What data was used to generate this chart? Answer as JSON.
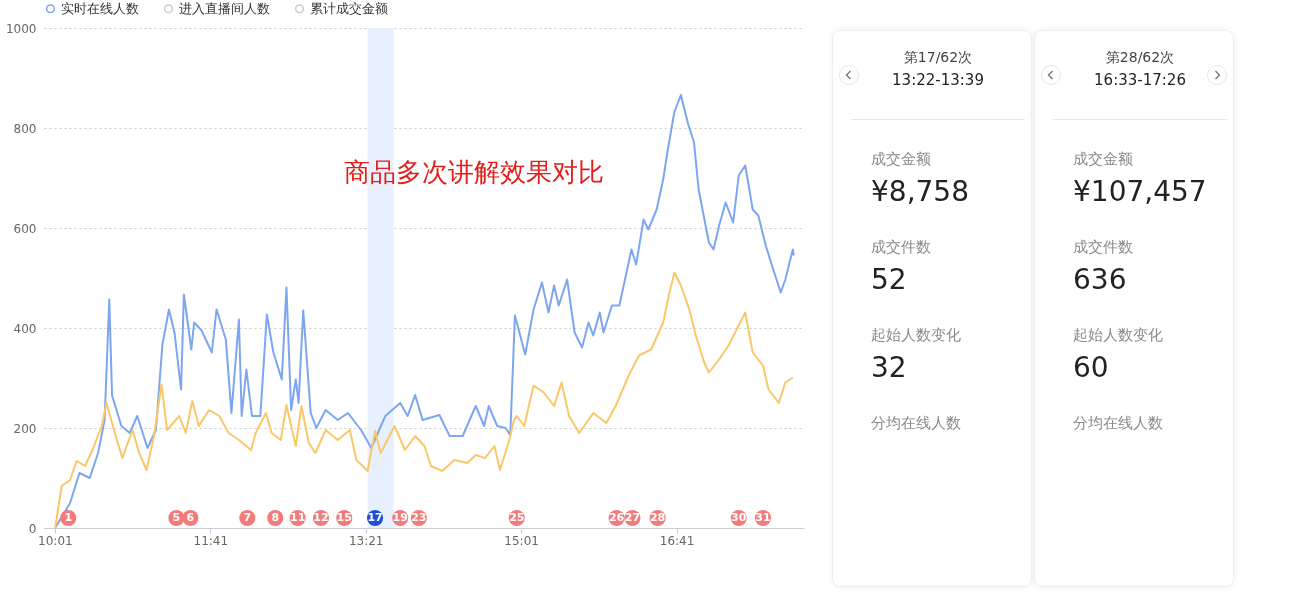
{
  "chart_data": [
    {
      "type": "line",
      "legend": "top",
      "grid": "y",
      "xlim": [
        9.9,
        18.05
      ],
      "ylim": [
        0,
        1000
      ],
      "xticks": [
        {
          "value": 10.0167,
          "label": "10:01"
        },
        {
          "value": 11.6833,
          "label": "11:41"
        },
        {
          "value": 13.35,
          "label": "13:21"
        },
        {
          "value": 15.0167,
          "label": "15:01"
        },
        {
          "value": 16.6833,
          "label": "16:41"
        }
      ],
      "yticks": [
        0,
        200,
        400,
        600,
        800,
        1000
      ],
      "bands": [
        {
          "axis": "x",
          "from": 13.37,
          "to": 13.65,
          "color": "#e8f0fe"
        }
      ],
      "series": [
        {
          "name": "实时在线人数",
          "color": "#7ea6f0",
          "x": [
            10.02,
            10.18,
            10.28,
            10.39,
            10.48,
            10.55,
            10.6,
            10.63,
            10.73,
            10.82,
            10.9,
            11.01,
            11.1,
            11.17,
            11.24,
            11.3,
            11.37,
            11.4,
            11.48,
            11.51,
            11.59,
            11.7,
            11.75,
            11.85,
            11.91,
            11.99,
            12.02,
            12.07,
            12.13,
            12.22,
            12.29,
            12.36,
            12.45,
            12.5,
            12.55,
            12.6,
            12.63,
            12.68,
            12.76,
            12.82,
            12.92,
            13.05,
            13.16,
            13.3,
            13.41,
            13.56,
            13.72,
            13.8,
            13.88,
            13.96,
            14.14,
            14.25,
            14.39,
            14.53,
            14.62,
            14.67,
            14.76,
            14.85,
            14.9,
            14.95,
            15.06,
            15.15,
            15.24,
            15.31,
            15.37,
            15.42,
            15.51,
            15.59,
            15.67,
            15.74,
            15.79,
            15.86,
            15.9,
            15.99,
            16.07,
            16.2,
            16.25,
            16.33,
            16.38,
            16.47,
            16.54,
            16.59,
            16.66,
            16.73,
            16.81,
            16.87,
            16.92,
            17.03,
            17.08,
            17.14,
            17.21,
            17.29,
            17.35,
            17.42,
            17.5,
            17.56,
            17.64,
            17.72,
            17.8,
            17.85,
            17.93,
            17.94
          ],
          "values": [
            0,
            50,
            110,
            100,
            150,
            216,
            457,
            265,
            204,
            190,
            224,
            160,
            196,
            367,
            437,
            390,
            277,
            467,
            357,
            411,
            395,
            351,
            437,
            377,
            230,
            417,
            224,
            317,
            224,
            224,
            427,
            351,
            297,
            481,
            236,
            297,
            250,
            435,
            230,
            200,
            236,
            216,
            230,
            196,
            160,
            224,
            250,
            224,
            266,
            216,
            226,
            184,
            184,
            244,
            204,
            244,
            204,
            200,
            186,
            425,
            347,
            437,
            491,
            431,
            485,
            445,
            497,
            391,
            361,
            411,
            385,
            431,
            391,
            445,
            445,
            557,
            527,
            617,
            597,
            637,
            697,
            757,
            832,
            866,
            806,
            772,
            677,
            571,
            557,
            605,
            651,
            611,
            705,
            725,
            637,
            625,
            565,
            517,
            471,
            497,
            557,
            545
          ]
        },
        {
          "color": "#f9c86a",
          "x": [
            10.02,
            10.09,
            10.18,
            10.25,
            10.34,
            10.42,
            10.52,
            10.57,
            10.66,
            10.74,
            10.85,
            10.92,
            11.0,
            11.08,
            11.16,
            11.22,
            11.35,
            11.42,
            11.49,
            11.56,
            11.67,
            11.78,
            11.88,
            11.99,
            12.12,
            12.17,
            12.28,
            12.34,
            12.44,
            12.5,
            12.6,
            12.66,
            12.74,
            12.81,
            12.92,
            13.05,
            13.18,
            13.25,
            13.37,
            13.45,
            13.51,
            13.66,
            13.77,
            13.88,
            13.98,
            14.05,
            14.17,
            14.3,
            14.44,
            14.53,
            14.63,
            14.73,
            14.79,
            14.89,
            14.94,
            14.97,
            15.05,
            15.15,
            15.26,
            15.37,
            15.45,
            15.53,
            15.64,
            15.79,
            15.93,
            16.03,
            16.17,
            16.28,
            16.41,
            16.54,
            16.6,
            16.66,
            16.73,
            16.82,
            16.89,
            16.98,
            17.03,
            17.14,
            17.24,
            17.35,
            17.42,
            17.5,
            17.61,
            17.67,
            17.78,
            17.85,
            17.93
          ],
          "values": [
            0,
            84,
            96,
            134,
            124,
            156,
            204,
            250,
            190,
            140,
            196,
            150,
            116,
            184,
            287,
            196,
            224,
            190,
            254,
            204,
            236,
            224,
            190,
            176,
            156,
            190,
            230,
            190,
            176,
            246,
            164,
            244,
            170,
            150,
            196,
            176,
            196,
            136,
            114,
            194,
            150,
            204,
            156,
            184,
            164,
            124,
            114,
            136,
            130,
            146,
            140,
            164,
            116,
            176,
            216,
            224,
            204,
            285,
            271,
            244,
            291,
            224,
            190,
            230,
            210,
            244,
            305,
            345,
            357,
            411,
            465,
            511,
            485,
            437,
            385,
            331,
            311,
            337,
            365,
            405,
            431,
            351,
            325,
            277,
            250,
            291,
            301
          ]
        },
        {
          "name": "进入直播间人数",
          "color": "#cccccc"
        },
        {
          "name": "累计成交金额",
          "color": "#cccccc"
        }
      ],
      "annotations": [
        "商品多次讲解效果对比",
        {
          "text": "1",
          "x": 10.16,
          "y": 20
        },
        {
          "text": "5",
          "x": 11.32,
          "y": 20
        },
        {
          "text": "6",
          "x": 11.47,
          "y": 20
        },
        {
          "text": "7",
          "x": 12.08,
          "y": 20
        },
        {
          "text": "8",
          "x": 12.38,
          "y": 20
        },
        {
          "text": "11",
          "x": 12.62,
          "y": 20
        },
        {
          "text": "12",
          "x": 12.87,
          "y": 20
        },
        {
          "text": "15",
          "x": 13.12,
          "y": 20
        },
        {
          "text": "17",
          "x": 13.45,
          "y": 20
        },
        {
          "text": "19",
          "x": 13.72,
          "y": 20
        },
        {
          "text": "23",
          "x": 13.92,
          "y": 20
        },
        {
          "text": "25",
          "x": 14.97,
          "y": 20
        },
        {
          "text": "26",
          "x": 16.04,
          "y": 20
        },
        {
          "text": "27",
          "x": 16.21,
          "y": 20
        },
        {
          "text": "28",
          "x": 16.48,
          "y": 20
        },
        {
          "text": "30",
          "x": 17.35,
          "y": 20
        },
        {
          "text": "31",
          "x": 17.61,
          "y": 20
        }
      ]
    },
    {
      "type": "other",
      "title": "第17/62次",
      "subtitle": "13:22-13:39",
      "annotations": [
        "成交金额",
        "¥8,758",
        "成交件数",
        "52",
        "起始人数变化",
        "32",
        "分均在线人数"
      ]
    },
    {
      "type": "other",
      "title": "第28/62次",
      "subtitle": "16:33-17:26",
      "annotations": [
        "成交金额",
        "¥107,457",
        "成交件数",
        "636",
        "起始人数变化",
        "60",
        "分均在线人数"
      ]
    }
  ]
}
